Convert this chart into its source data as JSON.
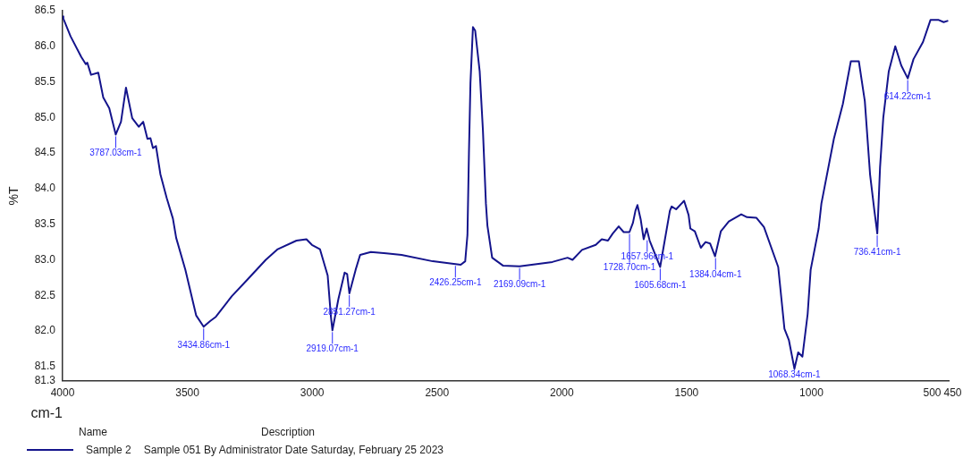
{
  "chart_data": {
    "type": "line",
    "xlabel": "cm-1",
    "ylabel": "%T",
    "legend": "bottom left",
    "legend_title": "Name",
    "grid": false,
    "marker": "none",
    "xlim": [
      4000,
      450
    ],
    "xticks": [
      4000,
      3500,
      3000,
      2500,
      2000,
      1500,
      1000,
      500,
      450
    ],
    "ylim": [
      81.3,
      86.5
    ],
    "yticks": [
      81.3,
      81.5,
      {
        "value": 82,
        "label": "82.0"
      },
      82.5,
      {
        "value": 83,
        "label": "83.0"
      },
      83.5,
      {
        "value": 84,
        "label": "84.0"
      },
      84.5,
      {
        "value": 85,
        "label": "85.0"
      },
      85.5,
      {
        "value": 86,
        "label": "86.0"
      },
      86.5
    ],
    "series": [
      {
        "name": "Sample 2",
        "color": "#14148c",
        "x": [
          4000,
          3997,
          3968,
          3925,
          3907,
          3901,
          3886,
          3857,
          3837,
          3813,
          3787,
          3766,
          3746,
          3721,
          3695,
          3677,
          3660,
          3648,
          3638,
          3626,
          3608,
          3583,
          3558,
          3545,
          3508,
          3465,
          3435,
          3409,
          3386,
          3322,
          3260,
          3186,
          3138,
          3063,
          3023,
          3001,
          2969,
          2938,
          2925,
          2919,
          2895,
          2870,
          2860,
          2851,
          2826,
          2808,
          2765,
          2703,
          2642,
          2517,
          2426,
          2405,
          2387,
          2378,
          2372,
          2366,
          2356,
          2347,
          2329,
          2316,
          2304,
          2298,
          2279,
          2236,
          2169,
          2038,
          1977,
          1957,
          1919,
          1864,
          1840,
          1815,
          1796,
          1772,
          1752,
          1729,
          1715,
          1705,
          1697,
          1684,
          1672,
          1660,
          1648,
          1606,
          1567,
          1560,
          1542,
          1510,
          1492,
          1485,
          1467,
          1443,
          1424,
          1406,
          1386,
          1363,
          1331,
          1281,
          1258,
          1220,
          1190,
          1133,
          1108,
          1090,
          1068,
          1053,
          1036,
          1015,
          1003,
          971,
          960,
          910,
          874,
          842,
          810,
          786,
          765,
          748,
          736,
          725,
          712,
          690,
          664,
          640,
          614,
          591,
          553,
          523,
          490,
          470,
          452
        ],
        "values": [
          86.42,
          86.39,
          86.14,
          85.85,
          85.75,
          85.77,
          85.6,
          85.63,
          85.28,
          85.13,
          84.76,
          84.94,
          85.42,
          84.99,
          84.87,
          84.94,
          84.7,
          84.71,
          84.57,
          84.6,
          84.2,
          83.87,
          83.58,
          83.31,
          82.86,
          82.22,
          82.06,
          82.14,
          82.2,
          82.49,
          82.72,
          83.0,
          83.15,
          83.27,
          83.29,
          83.21,
          83.15,
          82.78,
          82.2,
          82.01,
          82.45,
          82.82,
          82.8,
          82.53,
          82.86,
          83.07,
          83.11,
          83.09,
          83.07,
          82.98,
          82.94,
          82.93,
          82.98,
          83.35,
          84.5,
          85.48,
          86.27,
          86.22,
          85.65,
          84.82,
          83.79,
          83.48,
          83.03,
          82.92,
          82.91,
          82.97,
          83.03,
          83.0,
          83.14,
          83.21,
          83.29,
          83.27,
          83.37,
          83.47,
          83.39,
          83.39,
          83.52,
          83.69,
          83.77,
          83.57,
          83.29,
          83.44,
          83.27,
          82.9,
          83.69,
          83.75,
          83.71,
          83.83,
          83.63,
          83.44,
          83.4,
          83.17,
          83.25,
          83.23,
          83.05,
          83.4,
          83.54,
          83.64,
          83.6,
          83.59,
          83.46,
          82.9,
          82.03,
          81.87,
          81.47,
          81.7,
          81.64,
          82.24,
          82.86,
          83.44,
          83.79,
          84.7,
          85.19,
          85.79,
          85.79,
          85.23,
          84.2,
          83.7,
          83.37,
          84.3,
          85.0,
          85.65,
          86.0,
          85.73,
          85.55,
          85.82,
          86.06,
          86.37,
          86.37,
          86.34,
          86.36
        ]
      }
    ],
    "annotations": [
      {
        "text": "3787.03cm-1",
        "x": 3787.03,
        "y": 84.76
      },
      {
        "text": "3434.86cm-1",
        "x": 3434.86,
        "y": 82.06
      },
      {
        "text": "2919.07cm-1",
        "x": 2919.07,
        "y": 82.01
      },
      {
        "text": "2851.27cm-1",
        "x": 2851.27,
        "y": 82.53
      },
      {
        "text": "2426.25cm-1",
        "x": 2426.25,
        "y": 82.94
      },
      {
        "text": "2169.09cm-1",
        "x": 2169.09,
        "y": 82.91
      },
      {
        "text": "1657.96cm-1",
        "x": 1657.96,
        "y": 83.3
      },
      {
        "text": "1728.70cm-1",
        "x": 1728.7,
        "y": 83.39
      },
      {
        "text": "1605.68cm-1",
        "x": 1605.68,
        "y": 82.9
      },
      {
        "text": "1384.04cm-1",
        "x": 1384.04,
        "y": 83.05
      },
      {
        "text": "1068.34cm-1",
        "x": 1068.34,
        "y": 81.47
      },
      {
        "text": "736.41cm-1",
        "x": 736.41,
        "y": 83.37
      },
      {
        "text": "614.22cm-1",
        "x": 614.22,
        "y": 85.55
      },
      "Description",
      "Sample 051 By Administrator Date Saturday, February 25 2023"
    ]
  }
}
